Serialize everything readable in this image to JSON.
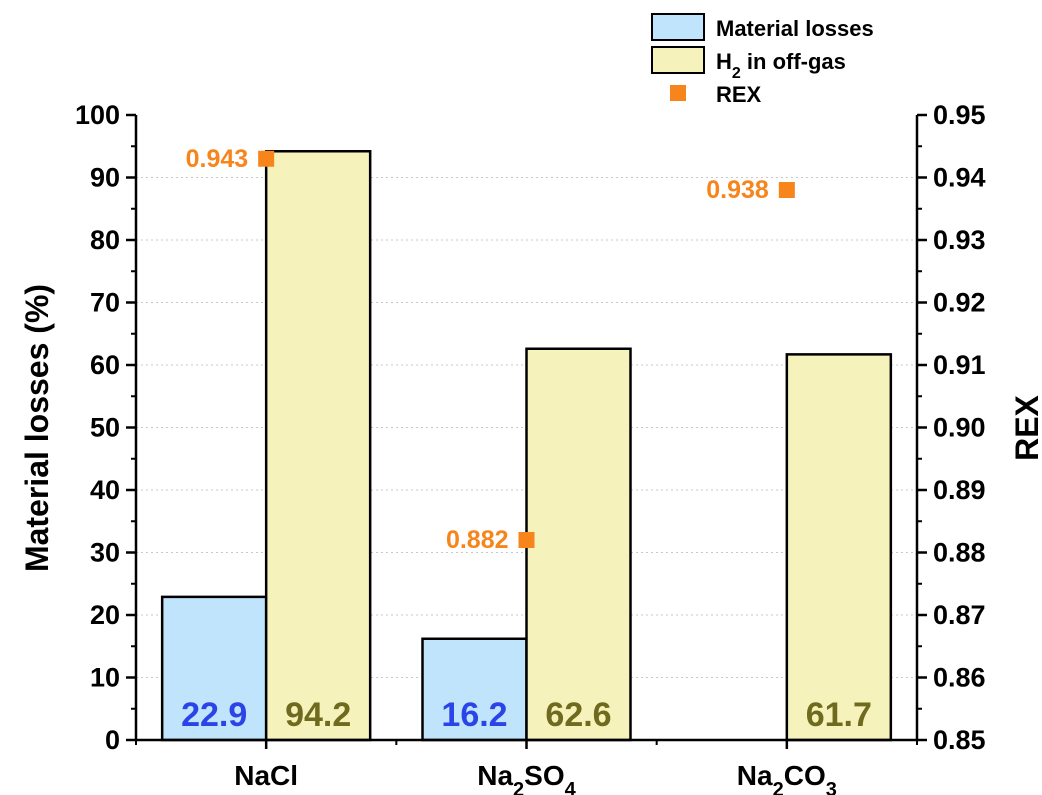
{
  "chart_data": {
    "type": "bar",
    "categories": [
      "NaCl",
      "Na2SO4",
      "Na2CO3"
    ],
    "category_labels": [
      [
        {
          "t": "NaCl",
          "sub": false
        }
      ],
      [
        {
          "t": "Na",
          "sub": false
        },
        {
          "t": "2",
          "sub": true
        },
        {
          "t": "SO",
          "sub": false
        },
        {
          "t": "4",
          "sub": true
        }
      ],
      [
        {
          "t": "Na",
          "sub": false
        },
        {
          "t": "2",
          "sub": true
        },
        {
          "t": "CO",
          "sub": false
        },
        {
          "t": "3",
          "sub": true
        }
      ]
    ],
    "series": [
      {
        "name": "Material losses",
        "axis": "left",
        "values": [
          22.9,
          16.2,
          null
        ],
        "labels": [
          "22.9",
          "16.2",
          ""
        ],
        "color": "#bfe4fb",
        "label_color": "#2b44e8"
      },
      {
        "name": "H2 in off-gas",
        "axis": "left",
        "values": [
          94.2,
          62.6,
          61.7
        ],
        "labels": [
          "94.2",
          "62.6",
          "61.7"
        ],
        "color": "#f6f2bb",
        "label_color": "#6e6b1f"
      },
      {
        "name": "REX",
        "axis": "right",
        "values": [
          0.943,
          0.882,
          0.938
        ],
        "labels": [
          "0.943",
          "0.882",
          "0.938"
        ],
        "color": "#f7851c",
        "label_color": "#f7851c"
      }
    ],
    "ylabel": "Material losses (%)",
    "y2label": "REX",
    "ylim": [
      0,
      100
    ],
    "y2lim": [
      0.85,
      0.95
    ],
    "yticks": [
      "0",
      "10",
      "20",
      "30",
      "40",
      "50",
      "60",
      "70",
      "80",
      "90",
      "100"
    ],
    "y2ticks": [
      "0.85",
      "0.86",
      "0.87",
      "0.88",
      "0.89",
      "0.90",
      "0.91",
      "0.92",
      "0.93",
      "0.94",
      "0.95"
    ],
    "grid": true,
    "legend": {
      "position": "top-right",
      "entries": [
        [
          {
            "t": "Material losses",
            "sub": false
          }
        ],
        [
          {
            "t": "H",
            "sub": false
          },
          {
            "t": "2",
            "sub": true
          },
          {
            "t": " in off-gas",
            "sub": false
          }
        ],
        [
          {
            "t": "REX",
            "sub": false
          }
        ]
      ]
    }
  }
}
